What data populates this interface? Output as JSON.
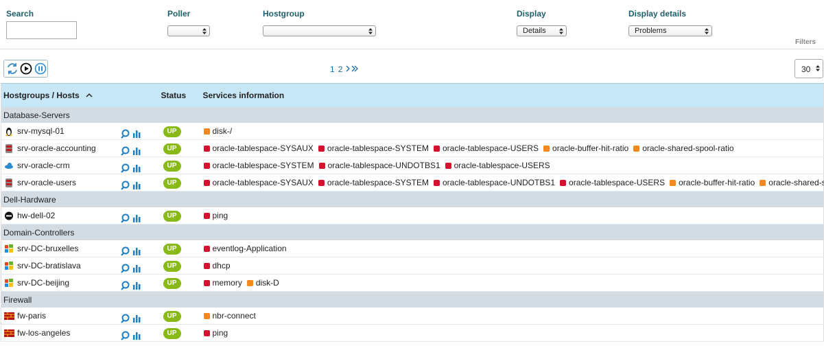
{
  "filters": {
    "search_label": "Search",
    "poller_label": "Poller",
    "hostgroup_label": "Hostgroup",
    "display_label": "Display",
    "display_value": "Details",
    "details_label": "Display details",
    "details_value": "Problems",
    "filters_tab": "Filters"
  },
  "pagination": {
    "pages": [
      1,
      2
    ],
    "per_page": 30
  },
  "table": {
    "headers": [
      "Hostgroups / Hosts",
      "Status",
      "Services information"
    ],
    "state_colors": {
      "critical": "#d4112e",
      "warning": "#f5891e"
    },
    "groups": [
      {
        "name": "Database-Servers",
        "hosts": [
          {
            "name": "srv-mysql-01",
            "icon": "linux",
            "status": "UP",
            "services": [
              {
                "name": "disk-/",
                "state": "warning"
              }
            ]
          },
          {
            "name": "srv-oracle-accounting",
            "icon": "oracle",
            "status": "UP",
            "services": [
              {
                "name": "oracle-tablespace-SYSAUX",
                "state": "critical"
              },
              {
                "name": "oracle-tablespace-SYSTEM",
                "state": "critical"
              },
              {
                "name": "oracle-tablespace-USERS",
                "state": "critical"
              },
              {
                "name": "oracle-buffer-hit-ratio",
                "state": "warning"
              },
              {
                "name": "oracle-shared-spool-ratio",
                "state": "warning"
              }
            ]
          },
          {
            "name": "srv-oracle-crm",
            "icon": "cloud",
            "status": "UP",
            "services": [
              {
                "name": "oracle-tablespace-SYSTEM",
                "state": "critical"
              },
              {
                "name": "oracle-tablespace-UNDOTBS1",
                "state": "critical"
              },
              {
                "name": "oracle-tablespace-USERS",
                "state": "critical"
              }
            ]
          },
          {
            "name": "srv-oracle-users",
            "icon": "oracle",
            "status": "UP",
            "services": [
              {
                "name": "oracle-tablespace-SYSAUX",
                "state": "critical"
              },
              {
                "name": "oracle-tablespace-SYSTEM",
                "state": "critical"
              },
              {
                "name": "oracle-tablespace-UNDOTBS1",
                "state": "critical"
              },
              {
                "name": "oracle-tablespace-USERS",
                "state": "critical"
              },
              {
                "name": "oracle-buffer-hit-ratio",
                "state": "warning"
              },
              {
                "name": "oracle-shared-spool-ratio",
                "state": "warning"
              }
            ]
          }
        ]
      },
      {
        "name": "Dell-Hardware",
        "hosts": [
          {
            "name": "hw-dell-02",
            "icon": "dell",
            "status": "UP",
            "services": [
              {
                "name": "ping",
                "state": "critical"
              }
            ]
          }
        ]
      },
      {
        "name": "Domain-Controllers",
        "hosts": [
          {
            "name": "srv-DC-bruxelles",
            "icon": "windows",
            "status": "UP",
            "services": [
              {
                "name": "eventlog-Application",
                "state": "critical"
              }
            ]
          },
          {
            "name": "srv-DC-bratislava",
            "icon": "windows",
            "status": "UP",
            "services": [
              {
                "name": "dhcp",
                "state": "critical"
              }
            ]
          },
          {
            "name": "srv-DC-beijing",
            "icon": "windows",
            "status": "UP",
            "services": [
              {
                "name": "memory",
                "state": "critical"
              },
              {
                "name": "disk-D",
                "state": "warning"
              }
            ]
          }
        ]
      },
      {
        "name": "Firewall",
        "hosts": [
          {
            "name": "fw-paris",
            "icon": "firewall",
            "status": "UP",
            "services": [
              {
                "name": "nbr-connect",
                "state": "warning"
              }
            ]
          },
          {
            "name": "fw-los-angeles",
            "icon": "firewall",
            "status": "UP",
            "services": [
              {
                "name": "ping",
                "state": "critical"
              }
            ]
          }
        ]
      }
    ]
  }
}
